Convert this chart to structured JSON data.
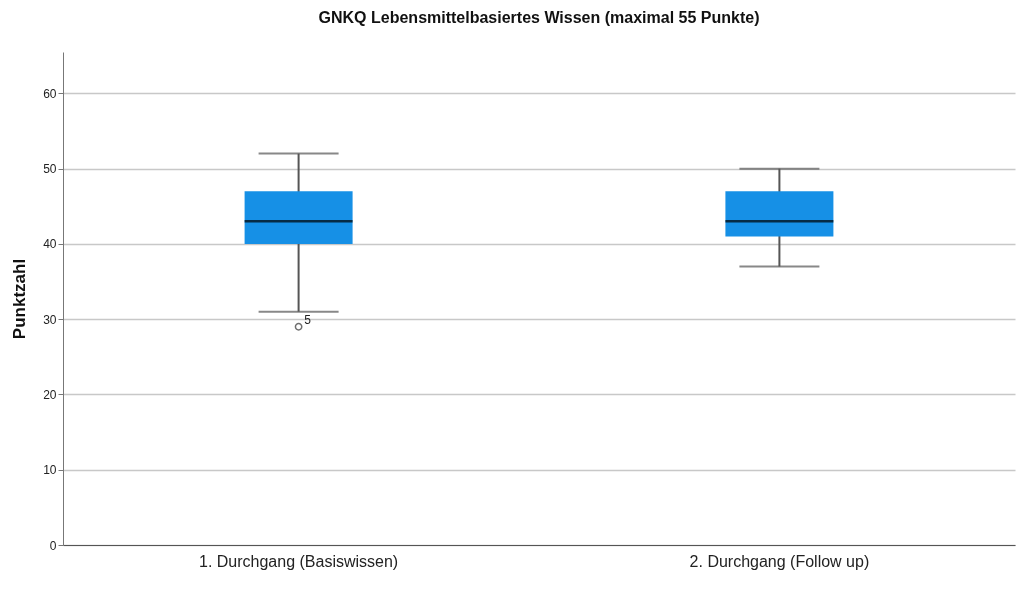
{
  "chart_data": {
    "type": "box",
    "title": "GNKQ Lebensmittelbasiertes Wissen (maximal 55 Punkte)",
    "ylabel": "Punktzahl",
    "categories": [
      "1. Durchgang (Basiswissen)",
      "2. Durchgang (Follow up)"
    ],
    "series": [
      {
        "color": "#1690e6",
        "boxes": [
          {
            "low": 31,
            "q1": 40,
            "median": 43,
            "q3": 47,
            "high": 52,
            "outliers": [
              29
            ]
          },
          {
            "low": 37,
            "q1": 41,
            "median": 43,
            "q3": 47,
            "high": 50
          }
        ]
      }
    ],
    "ylim": [
      0,
      65.5
    ],
    "yticks": [
      0,
      10,
      20,
      30,
      40,
      50,
      60
    ],
    "grid": "y",
    "annotations": [
      "5"
    ]
  }
}
